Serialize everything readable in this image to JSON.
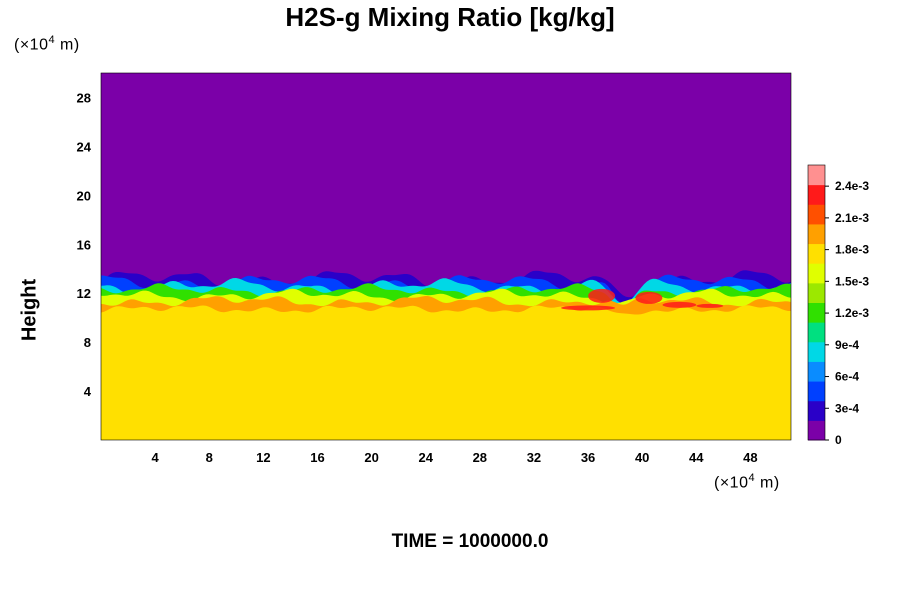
{
  "chart_data": {
    "type": "heatmap",
    "title": "H2S-g Mixing Ratio [kg/kg]",
    "ylabel": "Height",
    "x_unit": {
      "prefix": "(×10",
      "exp": "4",
      "suffix": " m)"
    },
    "y_unit": {
      "prefix": "(×10",
      "exp": "4",
      "suffix": " m)"
    },
    "xlim": [
      0,
      51
    ],
    "ylim": [
      0,
      30
    ],
    "x_ticks": [
      4,
      8,
      12,
      16,
      20,
      24,
      28,
      32,
      36,
      40,
      44,
      48
    ],
    "y_ticks": [
      4,
      8,
      12,
      16,
      20,
      24,
      28
    ],
    "colorbar": {
      "range": [
        0,
        0.0026
      ],
      "tick_values": [
        0,
        0.0003,
        0.0006,
        0.0009,
        0.0012,
        0.0015,
        0.0018,
        0.0021,
        0.0024
      ],
      "tick_labels": [
        "0",
        "3e-4",
        "6e-4",
        "9e-4",
        "1.2e-3",
        "1.5e-3",
        "1.8e-3",
        "2.1e-3",
        "2.4e-3"
      ],
      "colors": [
        "#7b00a8",
        "#2a00c8",
        "#0040ff",
        "#0a8cff",
        "#00d8e6",
        "#00e080",
        "#30e000",
        "#9ce800",
        "#e0ff00",
        "#ffe000",
        "#ffa000",
        "#ff5000",
        "#ff1a1a",
        "#ff9090"
      ]
    },
    "field": {
      "upper_value": 0.0,
      "lower_value": 0.0017,
      "interface_height": 12.5,
      "enhanced_zone": {
        "x_range": [
          34,
          46
        ],
        "height": 10.8,
        "value": 0.0023
      }
    },
    "footer": "TIME = 1000000.0"
  }
}
